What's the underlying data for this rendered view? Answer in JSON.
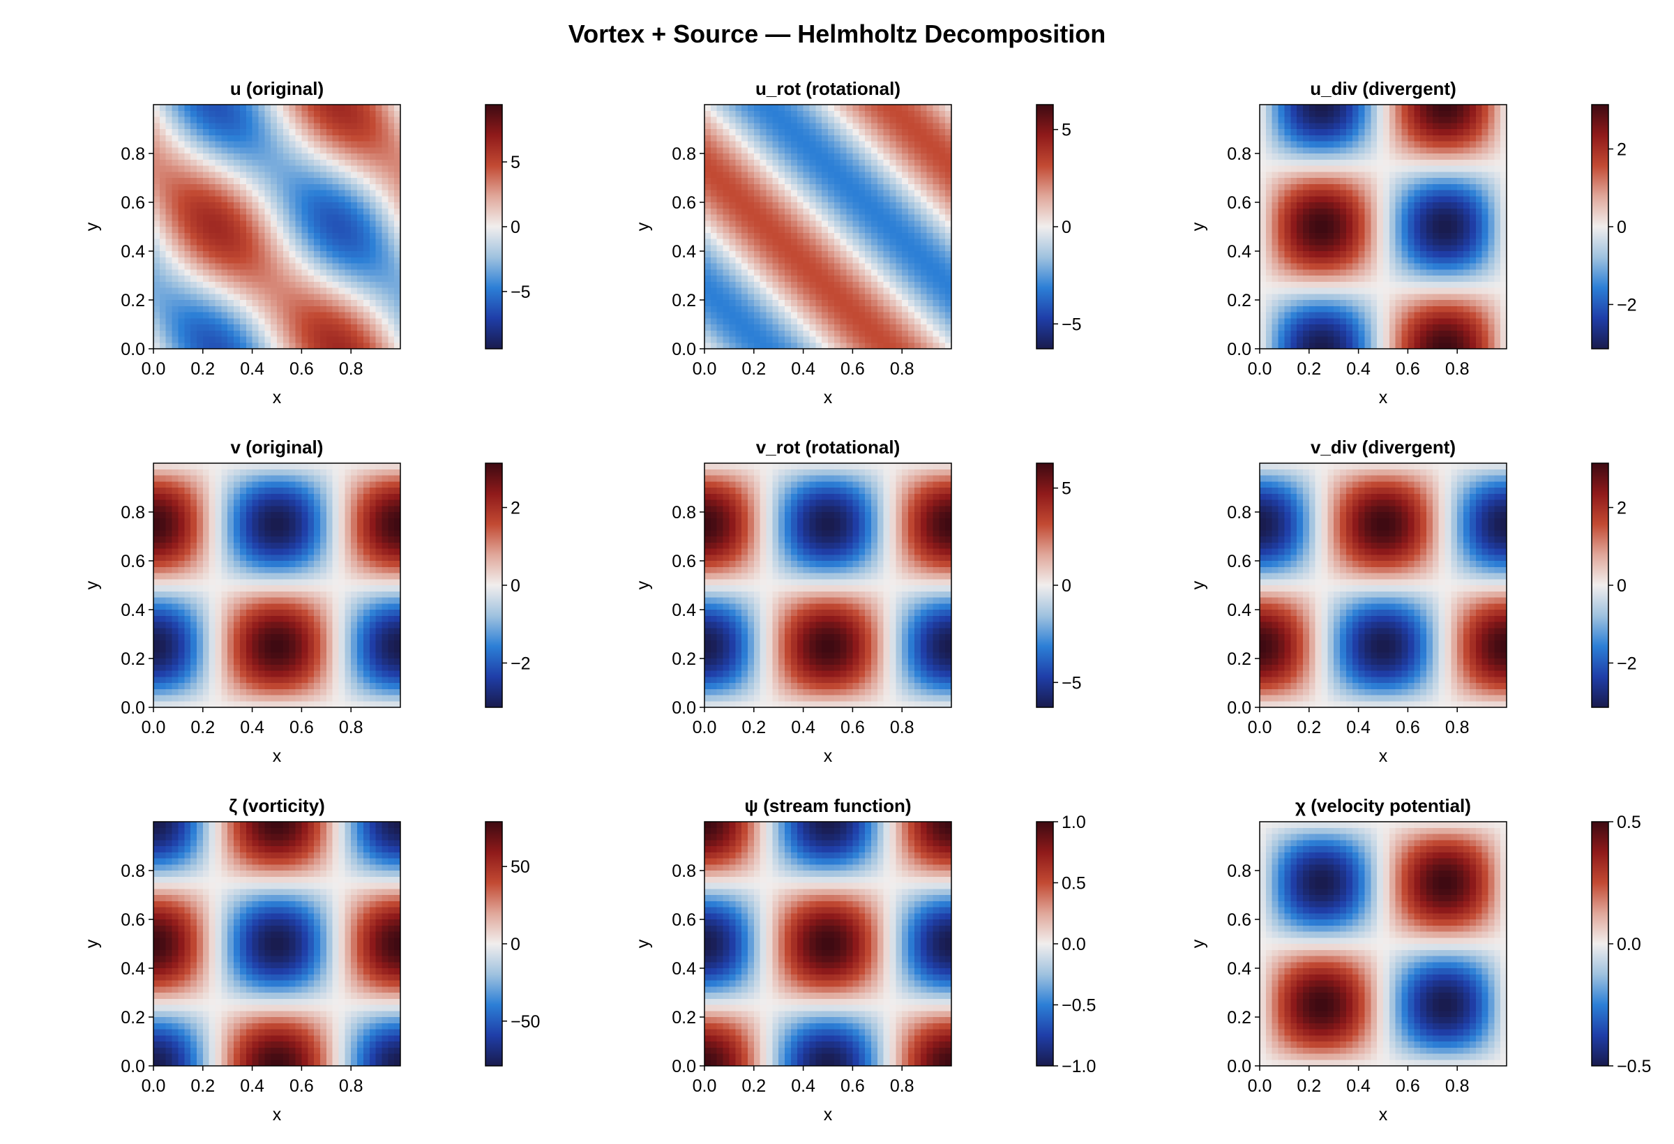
{
  "figure": {
    "title": "Vortex + Source — Helmholtz Decomposition"
  },
  "colormap": {
    "name": "balance",
    "stops": [
      "#191b4d",
      "#1f3ea8",
      "#2c7fd6",
      "#9fc2df",
      "#f1eeed",
      "#e0a79a",
      "#c24a33",
      "#8f1a1a",
      "#3d0a12"
    ]
  },
  "chart_data": [
    {
      "type": "heatmap",
      "title": "u (original)",
      "xlabel": "x",
      "ylabel": "y",
      "xlim": [
        0,
        1
      ],
      "ylim": [
        0,
        1
      ],
      "xticks": [
        0.0,
        0.2,
        0.4,
        0.6,
        0.8
      ],
      "yticks": [
        0.0,
        0.2,
        0.4,
        0.6,
        0.8
      ],
      "xtick_labels": [
        "0.0",
        "0.2",
        "0.4",
        "0.6",
        "0.8"
      ],
      "ytick_labels": [
        "0.0",
        "0.2",
        "0.4",
        "0.6",
        "0.8"
      ],
      "field": "-A*sin(2*pi*x)*cos(2*pi*y) + B*cos(2*pi*x)*sin(2*pi*y)",
      "A": 6.28,
      "B": -3.14,
      "colorbar": {
        "range": [
          -9.42,
          9.42
        ],
        "ticks": [
          -5,
          0,
          5
        ],
        "tick_labels": [
          "−5",
          "0",
          "5"
        ]
      }
    },
    {
      "type": "heatmap",
      "title": "u_rot (rotational)",
      "xlabel": "x",
      "ylabel": "y",
      "xlim": [
        0,
        1
      ],
      "ylim": [
        0,
        1
      ],
      "xticks": [
        0.0,
        0.2,
        0.4,
        0.6,
        0.8
      ],
      "yticks": [
        0.0,
        0.2,
        0.4,
        0.6,
        0.8
      ],
      "xtick_labels": [
        "0.0",
        "0.2",
        "0.4",
        "0.6",
        "0.8"
      ],
      "ytick_labels": [
        "0.0",
        "0.2",
        "0.4",
        "0.6",
        "0.8"
      ],
      "field": "-A*sin(2*pi*x)*cos(2*pi*y) + B*cos(2*pi*x)*sin(2*pi*y)",
      "A": 3.14,
      "B": -3.14,
      "colorbar": {
        "range": [
          -6.28,
          6.28
        ],
        "ticks": [
          -5,
          0,
          5
        ],
        "tick_labels": [
          "−5",
          "0",
          "5"
        ]
      }
    },
    {
      "type": "heatmap",
      "title": "u_div (divergent)",
      "xlabel": "x",
      "ylabel": "y",
      "xlim": [
        0,
        1
      ],
      "ylim": [
        0,
        1
      ],
      "xticks": [
        0.0,
        0.2,
        0.4,
        0.6,
        0.8
      ],
      "yticks": [
        0.0,
        0.2,
        0.4,
        0.6,
        0.8
      ],
      "xtick_labels": [
        "0.0",
        "0.2",
        "0.4",
        "0.6",
        "0.8"
      ],
      "ytick_labels": [
        "0.0",
        "0.2",
        "0.4",
        "0.6",
        "0.8"
      ],
      "field": "-A*sin(2*pi*x)*cos(2*pi*y)",
      "A": 3.14,
      "B": 0,
      "colorbar": {
        "range": [
          -3.14,
          3.14
        ],
        "ticks": [
          -2,
          0,
          2
        ],
        "tick_labels": [
          "−2",
          "0",
          "2"
        ]
      }
    },
    {
      "type": "heatmap",
      "title": "v (original)",
      "xlabel": "x",
      "ylabel": "y",
      "xlim": [
        0,
        1
      ],
      "ylim": [
        0,
        1
      ],
      "xticks": [
        0.0,
        0.2,
        0.4,
        0.6,
        0.8
      ],
      "yticks": [
        0.0,
        0.2,
        0.4,
        0.6,
        0.8
      ],
      "xtick_labels": [
        "0.0",
        "0.2",
        "0.4",
        "0.6",
        "0.8"
      ],
      "ytick_labels": [
        "0.0",
        "0.2",
        "0.4",
        "0.6",
        "0.8"
      ],
      "field": "-A*sin(2*pi*x)*cos(2*pi*y)",
      "A": -3.14,
      "B": 0,
      "xshift": 0.25,
      "yshift": 0.25,
      "colorbar": {
        "range": [
          -3.14,
          3.14
        ],
        "ticks": [
          -2,
          0,
          2
        ],
        "tick_labels": [
          "−2",
          "0",
          "2"
        ]
      }
    },
    {
      "type": "heatmap",
      "title": "v_rot (rotational)",
      "xlabel": "x",
      "ylabel": "y",
      "xlim": [
        0,
        1
      ],
      "ylim": [
        0,
        1
      ],
      "xticks": [
        0.0,
        0.2,
        0.4,
        0.6,
        0.8
      ],
      "yticks": [
        0.0,
        0.2,
        0.4,
        0.6,
        0.8
      ],
      "xtick_labels": [
        "0.0",
        "0.2",
        "0.4",
        "0.6",
        "0.8"
      ],
      "ytick_labels": [
        "0.0",
        "0.2",
        "0.4",
        "0.6",
        "0.8"
      ],
      "field": "-A*sin(2*pi*x)*cos(2*pi*y)",
      "A": -6.28,
      "B": 0,
      "xshift": 0.25,
      "yshift": 0.25,
      "colorbar": {
        "range": [
          -6.28,
          6.28
        ],
        "ticks": [
          -5,
          0,
          5
        ],
        "tick_labels": [
          "−5",
          "0",
          "5"
        ]
      }
    },
    {
      "type": "heatmap",
      "title": "v_div (divergent)",
      "xlabel": "x",
      "ylabel": "y",
      "xlim": [
        0,
        1
      ],
      "ylim": [
        0,
        1
      ],
      "xticks": [
        0.0,
        0.2,
        0.4,
        0.6,
        0.8
      ],
      "yticks": [
        0.0,
        0.2,
        0.4,
        0.6,
        0.8
      ],
      "xtick_labels": [
        "0.0",
        "0.2",
        "0.4",
        "0.6",
        "0.8"
      ],
      "ytick_labels": [
        "0.0",
        "0.2",
        "0.4",
        "0.6",
        "0.8"
      ],
      "field": "-A*sin(2*pi*x)*cos(2*pi*y)",
      "A": 3.14,
      "B": 0,
      "xshift": 0.25,
      "yshift": 0.25,
      "colorbar": {
        "range": [
          -3.14,
          3.14
        ],
        "ticks": [
          -2,
          0,
          2
        ],
        "tick_labels": [
          "−2",
          "0",
          "2"
        ]
      }
    },
    {
      "type": "heatmap",
      "title": "ζ (vorticity)",
      "xlabel": "x",
      "ylabel": "y",
      "xlim": [
        0,
        1
      ],
      "ylim": [
        0,
        1
      ],
      "xticks": [
        0.0,
        0.2,
        0.4,
        0.6,
        0.8
      ],
      "yticks": [
        0.0,
        0.2,
        0.4,
        0.6,
        0.8
      ],
      "xtick_labels": [
        "0.0",
        "0.2",
        "0.4",
        "0.6",
        "0.8"
      ],
      "ytick_labels": [
        "0.0",
        "0.2",
        "0.4",
        "0.6",
        "0.8"
      ],
      "field": "-A*sin(2*pi*x)*cos(2*pi*y)",
      "A": 78.96,
      "B": 0,
      "xshift": 0.25,
      "yshift": 0.0,
      "colorbar": {
        "range": [
          -78.96,
          78.96
        ],
        "ticks": [
          -50,
          0,
          50
        ],
        "tick_labels": [
          "−50",
          "0",
          "50"
        ]
      }
    },
    {
      "type": "heatmap",
      "title": "ψ (stream function)",
      "xlabel": "x",
      "ylabel": "y",
      "xlim": [
        0,
        1
      ],
      "ylim": [
        0,
        1
      ],
      "xticks": [
        0.0,
        0.2,
        0.4,
        0.6,
        0.8
      ],
      "yticks": [
        0.0,
        0.2,
        0.4,
        0.6,
        0.8
      ],
      "xtick_labels": [
        "0.0",
        "0.2",
        "0.4",
        "0.6",
        "0.8"
      ],
      "ytick_labels": [
        "0.0",
        "0.2",
        "0.4",
        "0.6",
        "0.8"
      ],
      "field": "-A*sin(2*pi*x)*cos(2*pi*y)",
      "A": -1.0,
      "B": 0,
      "xshift": 0.25,
      "yshift": 0.0,
      "colorbar": {
        "range": [
          -1.0,
          1.0
        ],
        "ticks": [
          -1.0,
          -0.5,
          0.0,
          0.5,
          1.0
        ],
        "tick_labels": [
          "−1.0",
          "−0.5",
          "0.0",
          "0.5",
          "1.0"
        ]
      }
    },
    {
      "type": "heatmap",
      "title": "χ (velocity potential)",
      "xlabel": "x",
      "ylabel": "y",
      "xlim": [
        0,
        1
      ],
      "ylim": [
        0,
        1
      ],
      "xticks": [
        0.0,
        0.2,
        0.4,
        0.6,
        0.8
      ],
      "yticks": [
        0.0,
        0.2,
        0.4,
        0.6,
        0.8
      ],
      "xtick_labels": [
        "0.0",
        "0.2",
        "0.4",
        "0.6",
        "0.8"
      ],
      "ytick_labels": [
        "0.0",
        "0.2",
        "0.4",
        "0.6",
        "0.8"
      ],
      "field": "-A*sin(2*pi*x)*cos(2*pi*y)",
      "A": 0.5,
      "B": 0,
      "xshift": 0.0,
      "yshift": 0.25,
      "colorbar": {
        "range": [
          -0.5,
          0.5
        ],
        "ticks": [
          -0.5,
          0.0,
          0.5
        ],
        "tick_labels": [
          "−0.5",
          "0.0",
          "0.5"
        ]
      }
    }
  ]
}
